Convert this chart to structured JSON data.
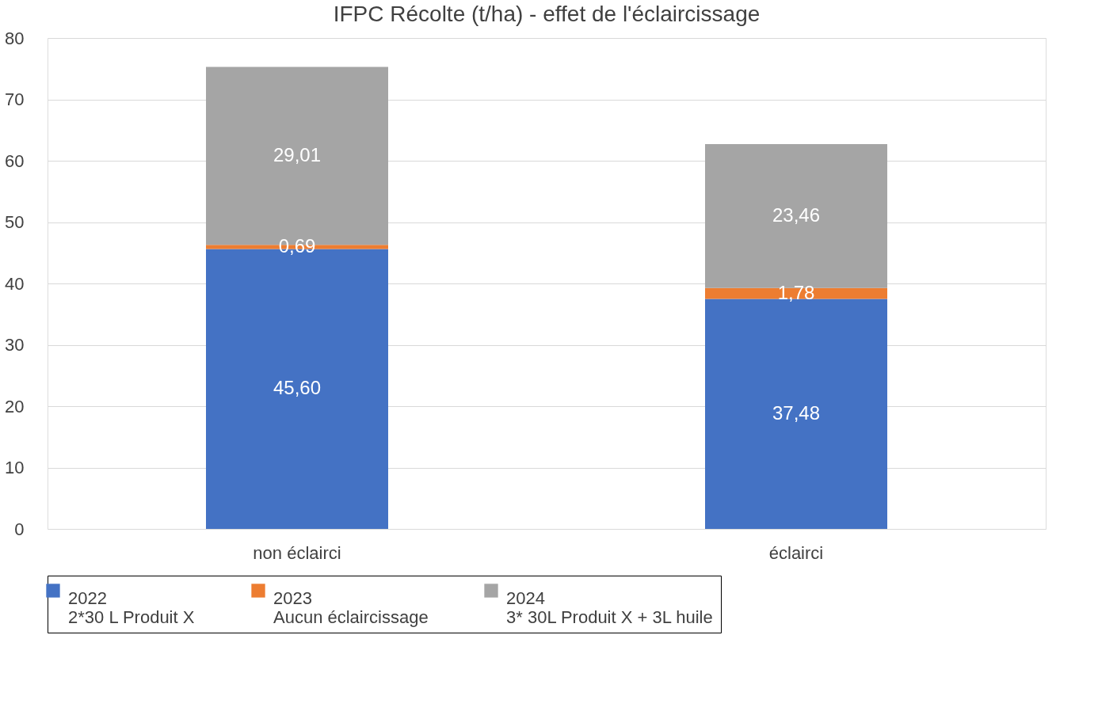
{
  "chart_data": {
    "type": "bar",
    "title": "IFPC Récolte (t/ha) - effet de l'éclaircissage",
    "categories": [
      "non éclairci",
      "éclairci"
    ],
    "stacked": true,
    "series": [
      {
        "name": "2022\n2*30 L Produit X",
        "color": "#4472c4",
        "values": [
          45.6,
          37.48
        ],
        "value_labels": [
          "45,60",
          "37,48"
        ]
      },
      {
        "name": "2023\nAucun éclaircissage",
        "color": "#ed7d31",
        "values": [
          0.69,
          1.78
        ],
        "value_labels": [
          "0,69",
          "1,78"
        ]
      },
      {
        "name": "2024\n3* 30L Produit X + 3L huile",
        "color": "#a5a5a5",
        "values": [
          29.01,
          23.46
        ],
        "value_labels": [
          "29,01",
          "23,46"
        ]
      }
    ],
    "ylim": [
      0,
      80
    ],
    "yticks": [
      0,
      10,
      20,
      30,
      40,
      50,
      60,
      70,
      80
    ],
    "grid": "y",
    "legend": "bottom"
  }
}
